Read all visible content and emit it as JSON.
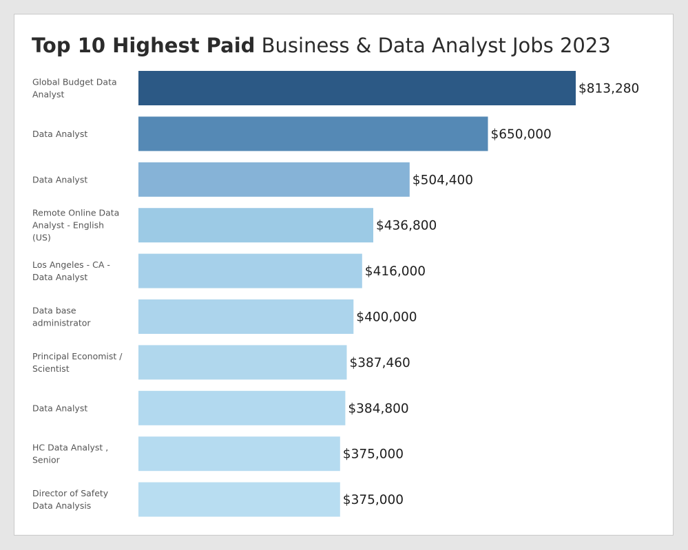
{
  "chart_data": {
    "type": "bar",
    "orientation": "horizontal",
    "title": {
      "bold": "Top 10 Highest Paid",
      "regular": "Business & Data Analyst Jobs 2023"
    },
    "categories": [
      "Global Budget Data Analyst",
      "Data Analyst",
      "Data Analyst",
      "Remote Online Data Analyst - English (US)",
      "Los Angeles - CA - Data Analyst",
      "Data base administrator",
      "Principal Economist / Scientist",
      "Data Analyst",
      "HC Data Analyst , Senior",
      "Director of Safety Data Analysis"
    ],
    "values": [
      813280,
      650000,
      504400,
      436800,
      416000,
      400000,
      387460,
      384800,
      375000,
      375000
    ],
    "value_labels": [
      "$813,280",
      "$650,000",
      "$504,400",
      "$436,800",
      "$416,000",
      "$400,000",
      "$387,460",
      "$384,800",
      "$375,000",
      "$375,000"
    ],
    "bar_colors": [
      "#2c5985",
      "#5589b5",
      "#86b3d7",
      "#9ccae5",
      "#a6d0ea",
      "#acd4ec",
      "#b0d7ed",
      "#b2d9ef",
      "#b5dbf0",
      "#b8ddf1"
    ],
    "xlim": [
      0,
      813280
    ],
    "xlabel": "",
    "ylabel": "",
    "grid": false,
    "legend": "none"
  }
}
